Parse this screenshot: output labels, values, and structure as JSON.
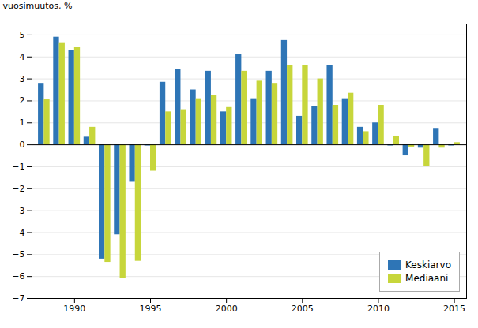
{
  "chart_data": {
    "type": "bar",
    "categories": [
      null,
      null,
      "1990",
      null,
      null,
      null,
      null,
      "1995",
      null,
      null,
      null,
      null,
      "2000",
      null,
      null,
      null,
      null,
      "2005",
      null,
      null,
      null,
      null,
      "2010",
      null,
      null,
      null,
      null,
      "2015"
    ],
    "series": [
      {
        "name": "Keskiarvo",
        "color": "#2e75b6",
        "values": [
          2.8,
          4.9,
          4.3,
          0.35,
          -5.2,
          -4.1,
          -1.7,
          -0.05,
          2.85,
          3.45,
          2.5,
          3.35,
          1.5,
          4.1,
          2.1,
          3.35,
          4.75,
          1.3,
          1.75,
          3.6,
          2.1,
          0.8,
          1.0,
          -0.05,
          -0.5,
          -0.15,
          0.75,
          -0.05
        ]
      },
      {
        "name": "Mediaani",
        "color": "#c7d63b",
        "values": [
          2.05,
          4.65,
          4.45,
          0.8,
          -5.35,
          -6.1,
          -5.3,
          -1.2,
          1.5,
          1.6,
          2.1,
          2.25,
          1.7,
          3.35,
          2.9,
          2.8,
          3.6,
          3.6,
          3.0,
          1.8,
          2.35,
          0.6,
          1.8,
          0.4,
          -0.1,
          -1.0,
          -0.15,
          0.1
        ]
      }
    ],
    "ylabel": "vuosimuutos, %",
    "ylim": [
      -7,
      5.5
    ],
    "yticks": [
      -7,
      -6,
      -5,
      -4,
      -3,
      -2,
      -1,
      0,
      1,
      2,
      3,
      4,
      5
    ],
    "grid": true,
    "legend": "lower right"
  }
}
